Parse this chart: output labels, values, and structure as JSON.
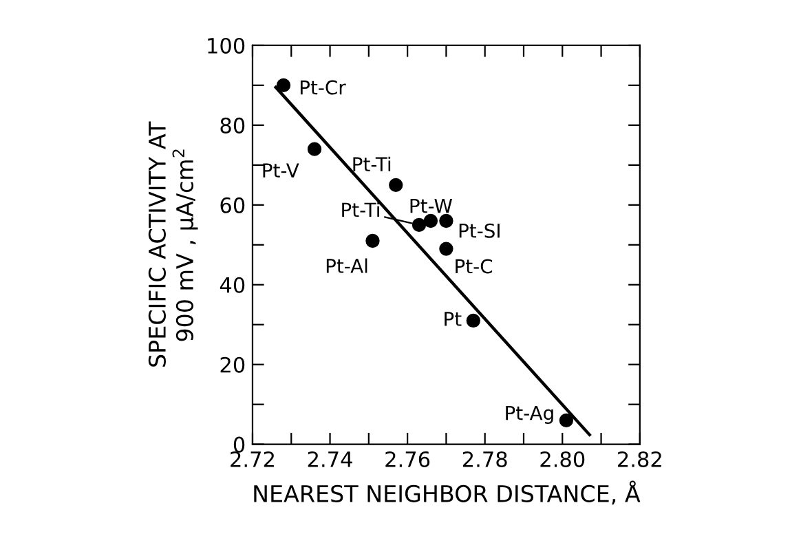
{
  "chart_data": {
    "type": "scatter",
    "xlabel": "NEAREST NEIGHBOR DISTANCE, Å",
    "ylabel": "SPECIFIC ACTIVITY AT\n900 mV , μA/cm$^{2}$",
    "series": [
      {
        "color": "#000000",
        "marker": "circle",
        "x": [
          2.728,
          2.736,
          2.757,
          2.763,
          2.766,
          2.77,
          2.751,
          2.77,
          2.777,
          2.801
        ],
        "values": [
          90,
          74,
          65,
          55,
          56,
          56,
          51,
          49,
          31,
          6
        ]
      },
      {
        "type": "line",
        "color": "#000000",
        "marker": "none",
        "line_style": "solid",
        "x": [
          2.726,
          2.807
        ],
        "values": [
          89.5,
          2.4
        ]
      }
    ],
    "annotations": [
      {
        "text": "Pt-Cr",
        "x": 2.728,
        "y": 90
      },
      {
        "text": "Pt-V",
        "x": 2.736,
        "y": 74
      },
      {
        "text": "Pt-Ti",
        "x": 2.757,
        "y": 65
      },
      {
        "text": "Pt-Ti",
        "x": 2.763,
        "y": 55
      },
      {
        "text": "Pt-W",
        "x": 2.766,
        "y": 56
      },
      {
        "text": "Pt-SI",
        "x": 2.77,
        "y": 56
      },
      {
        "text": "Pt-Al",
        "x": 2.751,
        "y": 51
      },
      {
        "text": "Pt-C",
        "x": 2.77,
        "y": 49
      },
      {
        "text": "Pt",
        "x": 2.777,
        "y": 31
      },
      {
        "text": "Pt-Ag",
        "x": 2.801,
        "y": 6
      }
    ],
    "xlim": [
      2.72,
      2.82
    ],
    "xticks": [
      2.72,
      {
        "value": 2.73,
        "label": null
      },
      2.74,
      {
        "value": 2.75,
        "label": null
      },
      2.76,
      {
        "value": 2.77,
        "label": null
      },
      2.78,
      {
        "value": 2.79,
        "label": null
      },
      {
        "value": 2.8,
        "label": "2.80"
      },
      {
        "value": 2.81,
        "label": null
      },
      2.82
    ],
    "ylim": [
      0,
      100
    ],
    "yticks": [
      0,
      {
        "value": 10,
        "label": null
      },
      20,
      {
        "value": 30,
        "label": null
      },
      40,
      {
        "value": 50,
        "label": null
      },
      60,
      {
        "value": 70,
        "label": null
      },
      80,
      {
        "value": 90,
        "label": null
      },
      100
    ],
    "grid": false
  }
}
